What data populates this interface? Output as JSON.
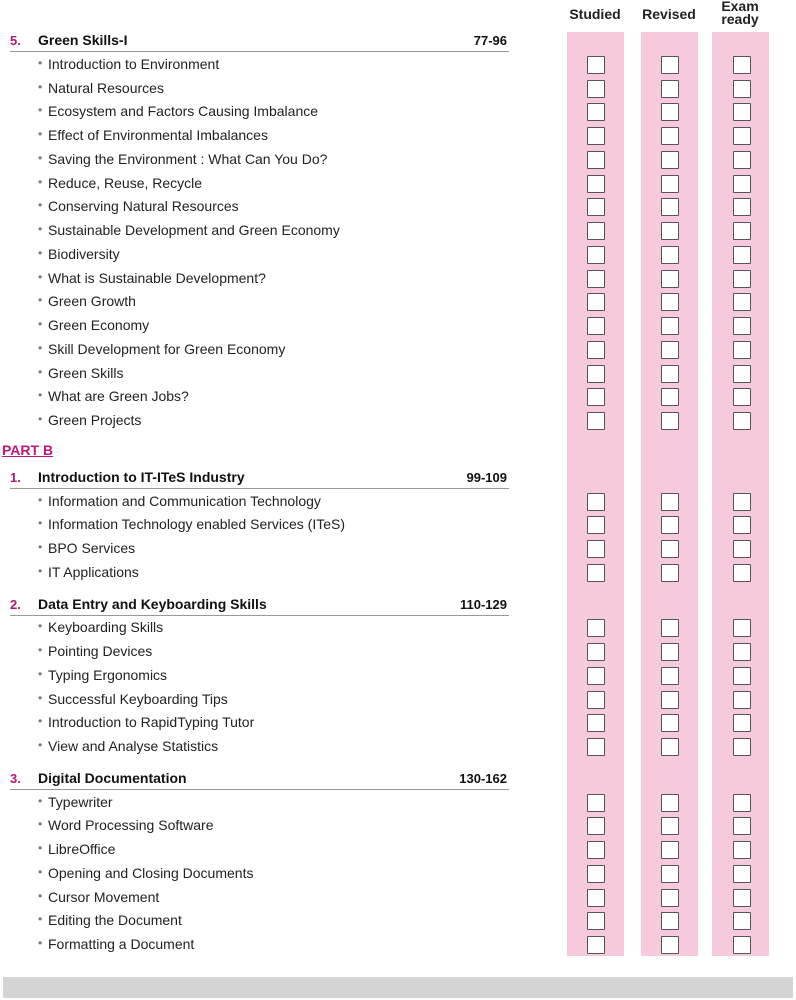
{
  "columns": [
    "Studied",
    "Revised",
    "Exam\nready"
  ],
  "colors": {
    "accent": "#b0186e",
    "column_fill": "#f6c9dd"
  },
  "blocks": [
    {
      "type": "chapter",
      "num": "5.",
      "title": "Green Skills-I",
      "pages": "77-96",
      "items": [
        "Introduction to Environment",
        "Natural Resources",
        "Ecosystem and Factors Causing Imbalance",
        "Effect of Environmental Imbalances",
        "Saving the Environment : What Can You Do?",
        "Reduce, Reuse, Recycle",
        "Conserving Natural Resources",
        "Sustainable Development and Green Economy",
        "Biodiversity",
        "What is Sustainable Development?",
        "Green Growth",
        "Green Economy",
        "Skill Development for Green Economy",
        "Green Skills",
        "What are Green Jobs?",
        "Green Projects"
      ]
    },
    {
      "type": "part",
      "title": "PART B"
    },
    {
      "type": "chapter",
      "num": "1.",
      "title": "Introduction to IT-ITeS Industry",
      "pages": "99-109",
      "items": [
        "Information and Communication Technology",
        "Information Technology enabled Services (ITeS)",
        "BPO Services",
        "IT Applications"
      ]
    },
    {
      "type": "chapter",
      "num": "2.",
      "title": "Data Entry and Keyboarding Skills",
      "pages": "110-129",
      "items": [
        "Keyboarding Skills",
        "Pointing Devices",
        "Typing Ergonomics",
        "Successful Keyboarding Tips",
        "Introduction to RapidTyping Tutor",
        "View and Analyse Statistics"
      ]
    },
    {
      "type": "chapter",
      "num": "3.",
      "title": "Digital Documentation",
      "pages": "130-162",
      "items": [
        "Typewriter",
        "Word Processing Software",
        "LibreOffice",
        "Opening and Closing Documents",
        "Cursor Movement",
        "Editing the Document",
        "Formatting a Document"
      ]
    }
  ]
}
